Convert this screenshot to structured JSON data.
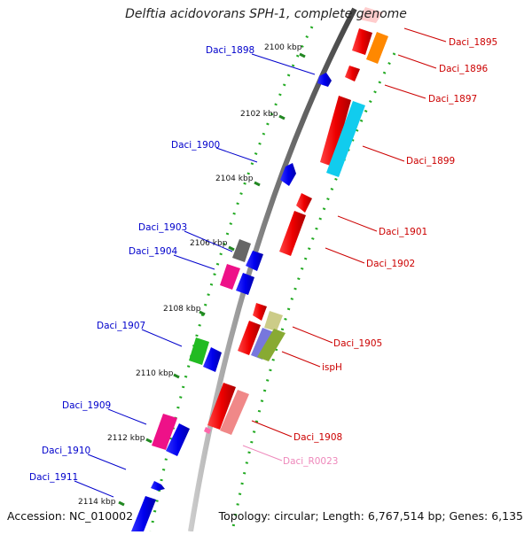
{
  "title": "Delftia acidovorans SPH-1, complete genome",
  "footer": {
    "accession": "Accession: NC_010002",
    "summary": "Topology: circular; Length: 6,767,514 bp; Genes: 6,135"
  },
  "ticks": [
    {
      "label": "2100 kbp"
    },
    {
      "label": "2102 kbp"
    },
    {
      "label": "2104 kbp"
    },
    {
      "label": "2106 kbp"
    },
    {
      "label": "2108 kbp"
    },
    {
      "label": "2110 kbp"
    },
    {
      "label": "2112 kbp"
    },
    {
      "label": "2114 kbp"
    }
  ],
  "labels_left": [
    {
      "name": "Daci_1898",
      "color": "#0000cc"
    },
    {
      "name": "Daci_1900",
      "color": "#0000cc"
    },
    {
      "name": "Daci_1903",
      "color": "#0000cc"
    },
    {
      "name": "Daci_1904",
      "color": "#0000cc"
    },
    {
      "name": "Daci_1907",
      "color": "#0000cc"
    },
    {
      "name": "Daci_1909",
      "color": "#0000cc"
    },
    {
      "name": "Daci_1910",
      "color": "#0000cc"
    },
    {
      "name": "Daci_1911",
      "color": "#0000cc"
    }
  ],
  "labels_right": [
    {
      "name": "Daci_1895",
      "color": "#cc0000"
    },
    {
      "name": "Daci_1896",
      "color": "#cc0000"
    },
    {
      "name": "Daci_1897",
      "color": "#cc0000"
    },
    {
      "name": "Daci_1899",
      "color": "#cc0000"
    },
    {
      "name": "Daci_1901",
      "color": "#cc0000"
    },
    {
      "name": "Daci_1902",
      "color": "#cc0000"
    },
    {
      "name": "Daci_1905",
      "color": "#cc0000"
    },
    {
      "name": "ispH",
      "color": "#cc0000"
    },
    {
      "name": "Daci_1908",
      "color": "#cc0000"
    },
    {
      "name": "Daci_R0023",
      "color": "#ee88bb"
    }
  ],
  "colors": {
    "forward": "#ee0000",
    "reverse": "#0000ee",
    "backbone": "#888888",
    "tick": "#228822"
  }
}
